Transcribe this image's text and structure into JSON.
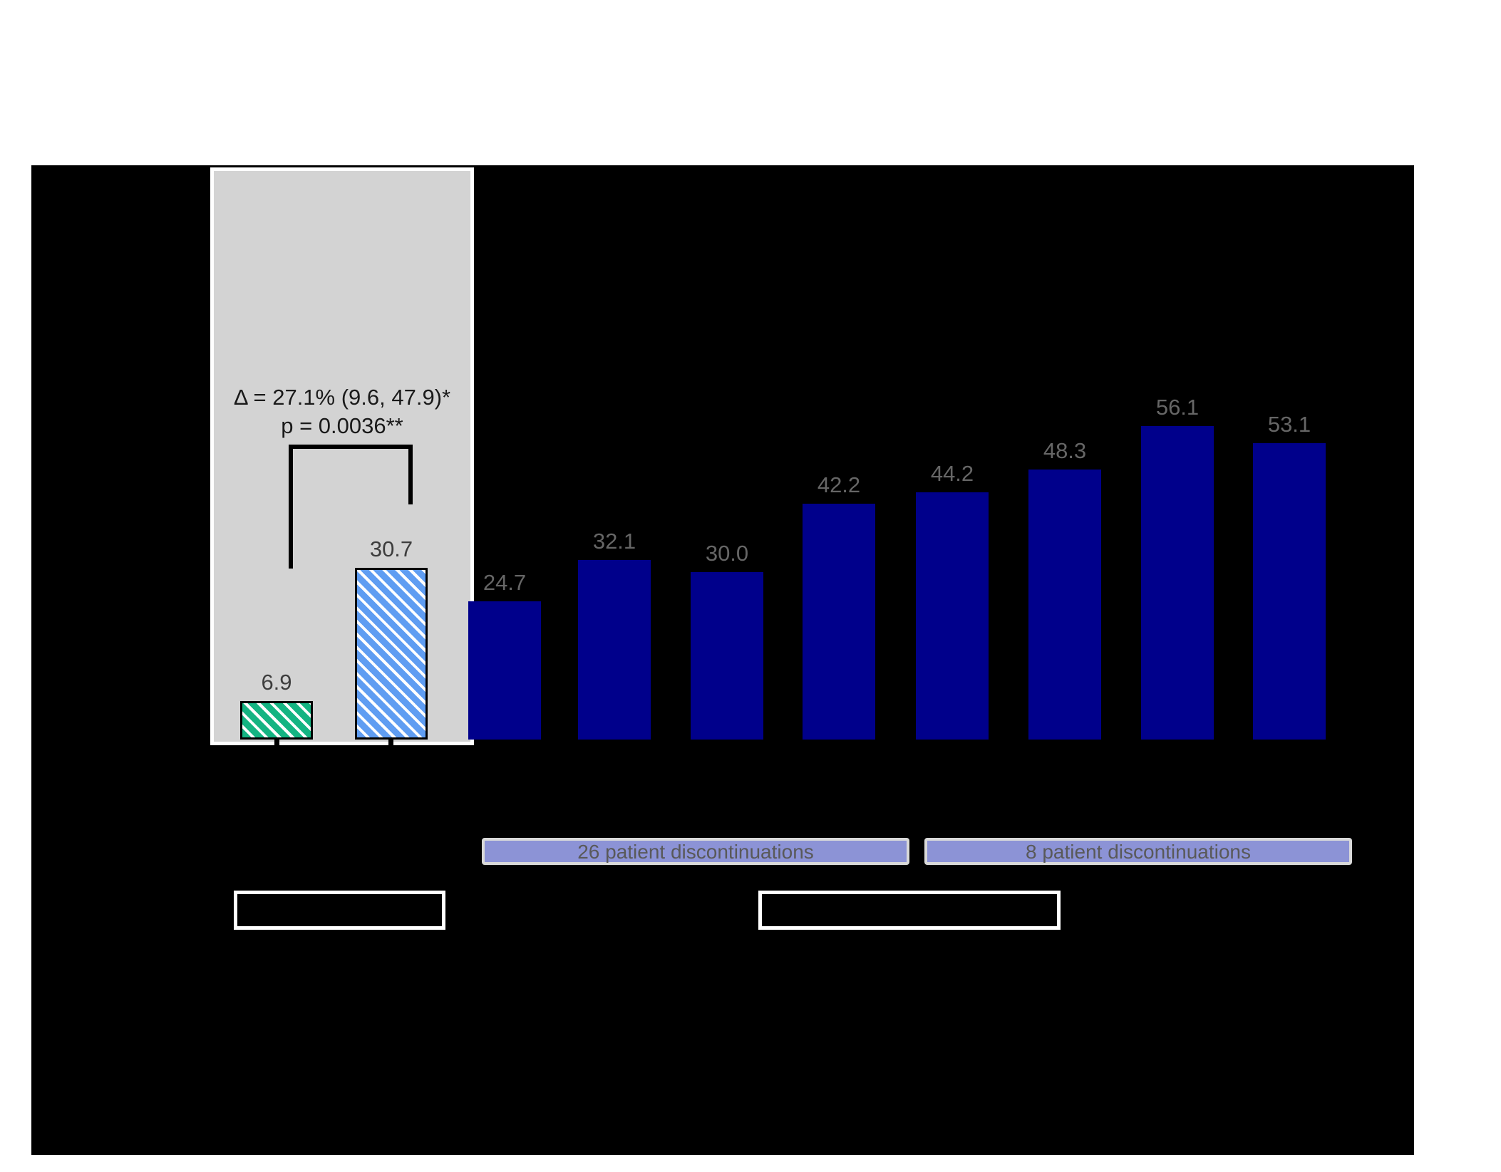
{
  "chart_data": {
    "type": "bar",
    "title": "",
    "xlabel": "",
    "ylabel": "",
    "ylim": [
      0,
      103
    ],
    "grid": false,
    "bars": [
      {
        "value": 6.9,
        "label": "6.9",
        "style": "green-hatched",
        "group": "highlight-panel"
      },
      {
        "value": 30.7,
        "label": "30.7",
        "style": "blue-hatched",
        "group": "highlight-panel"
      },
      {
        "value": 24.7,
        "label": "24.7",
        "style": "navy",
        "group": "open-label"
      },
      {
        "value": 32.1,
        "label": "32.1",
        "style": "navy",
        "group": "open-label"
      },
      {
        "value": 30.0,
        "label": "30.0",
        "style": "navy",
        "group": "open-label"
      },
      {
        "value": 42.2,
        "label": "42.2",
        "style": "navy",
        "group": "open-label"
      },
      {
        "value": 44.2,
        "label": "44.2",
        "style": "navy",
        "group": "open-label"
      },
      {
        "value": 48.3,
        "label": "48.3",
        "style": "navy",
        "group": "open-label"
      },
      {
        "value": 56.1,
        "label": "56.1",
        "style": "navy",
        "group": "open-label"
      },
      {
        "value": 53.1,
        "label": "53.1",
        "style": "navy",
        "group": "open-label"
      }
    ],
    "annotations": {
      "delta_line": "Δ = 27.1% (9.6, 47.9)*",
      "p_line": "p = 0.0036**"
    },
    "discontinuation_labels": [
      "26 patient discontinuations",
      "8 patient discontinuations"
    ]
  },
  "colors": {
    "plot_background": "#000000",
    "panel_fill": "#D3D3D3",
    "panel_border": "#FFFFFF",
    "navy_bar": "#00008B",
    "green_bar": "#14B482",
    "blue_bar": "#5F9DF2",
    "hatch_stripe": "#FFFFFF",
    "bar_outline": "#000000",
    "pill_fill": "#8C93D6",
    "pill_border": "#D9D9D9",
    "pill_text": "#595959",
    "label_on_black": "#666666",
    "label_on_panel": "#3D3D3D",
    "annotation_text": "#1A1A1A",
    "bracket": "#000000",
    "legend_box_border": "#FFFFFF"
  }
}
